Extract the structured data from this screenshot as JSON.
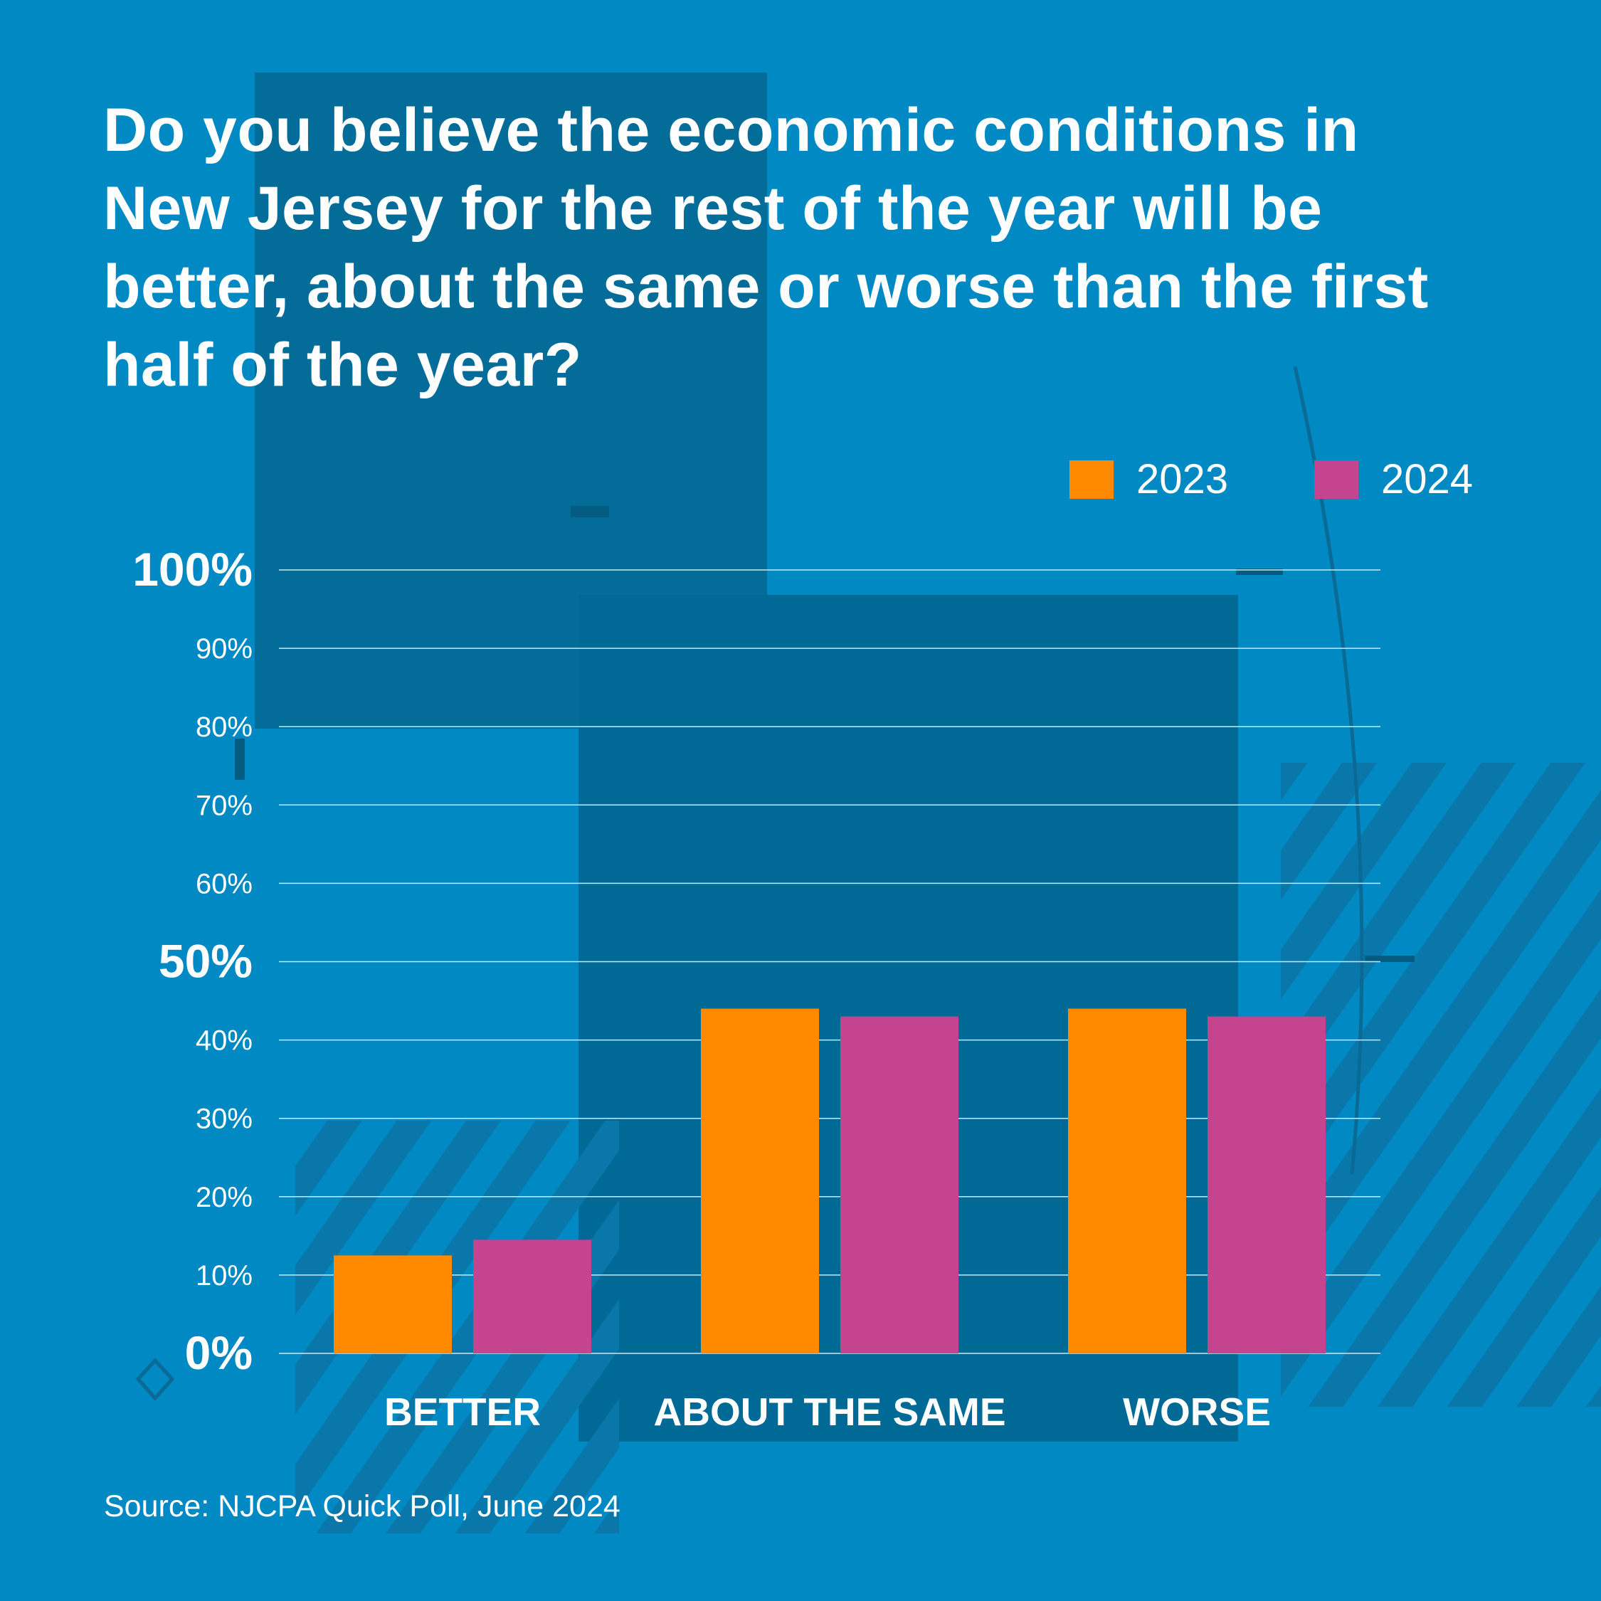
{
  "title": "Do you believe the economic conditions in New Jersey for the rest of the year will be better, about the same or worse than the first half of the year?",
  "source": "Source: NJCPA Quick Poll, June 2024",
  "colors": {
    "background": "#0089c3",
    "series_2023": "#ff8a00",
    "series_2024": "#c4448f",
    "text": "#ffffff",
    "grid": "#cfe6f2"
  },
  "chart_data": {
    "type": "bar",
    "categories": [
      "BETTER",
      "ABOUT THE SAME",
      "WORSE"
    ],
    "series": [
      {
        "name": "2023",
        "values": [
          12.5,
          44,
          44
        ]
      },
      {
        "name": "2024",
        "values": [
          14.5,
          43,
          43
        ]
      }
    ],
    "ylim": [
      0,
      100
    ],
    "y_ticks": [
      "0%",
      "10%",
      "20%",
      "30%",
      "40%",
      "50%",
      "60%",
      "70%",
      "80%",
      "90%",
      "100%"
    ],
    "y_ticks_emphasized": [
      "0%",
      "50%",
      "100%"
    ],
    "grid": true,
    "legend_position": "top-right",
    "xlabel": "",
    "ylabel": ""
  }
}
